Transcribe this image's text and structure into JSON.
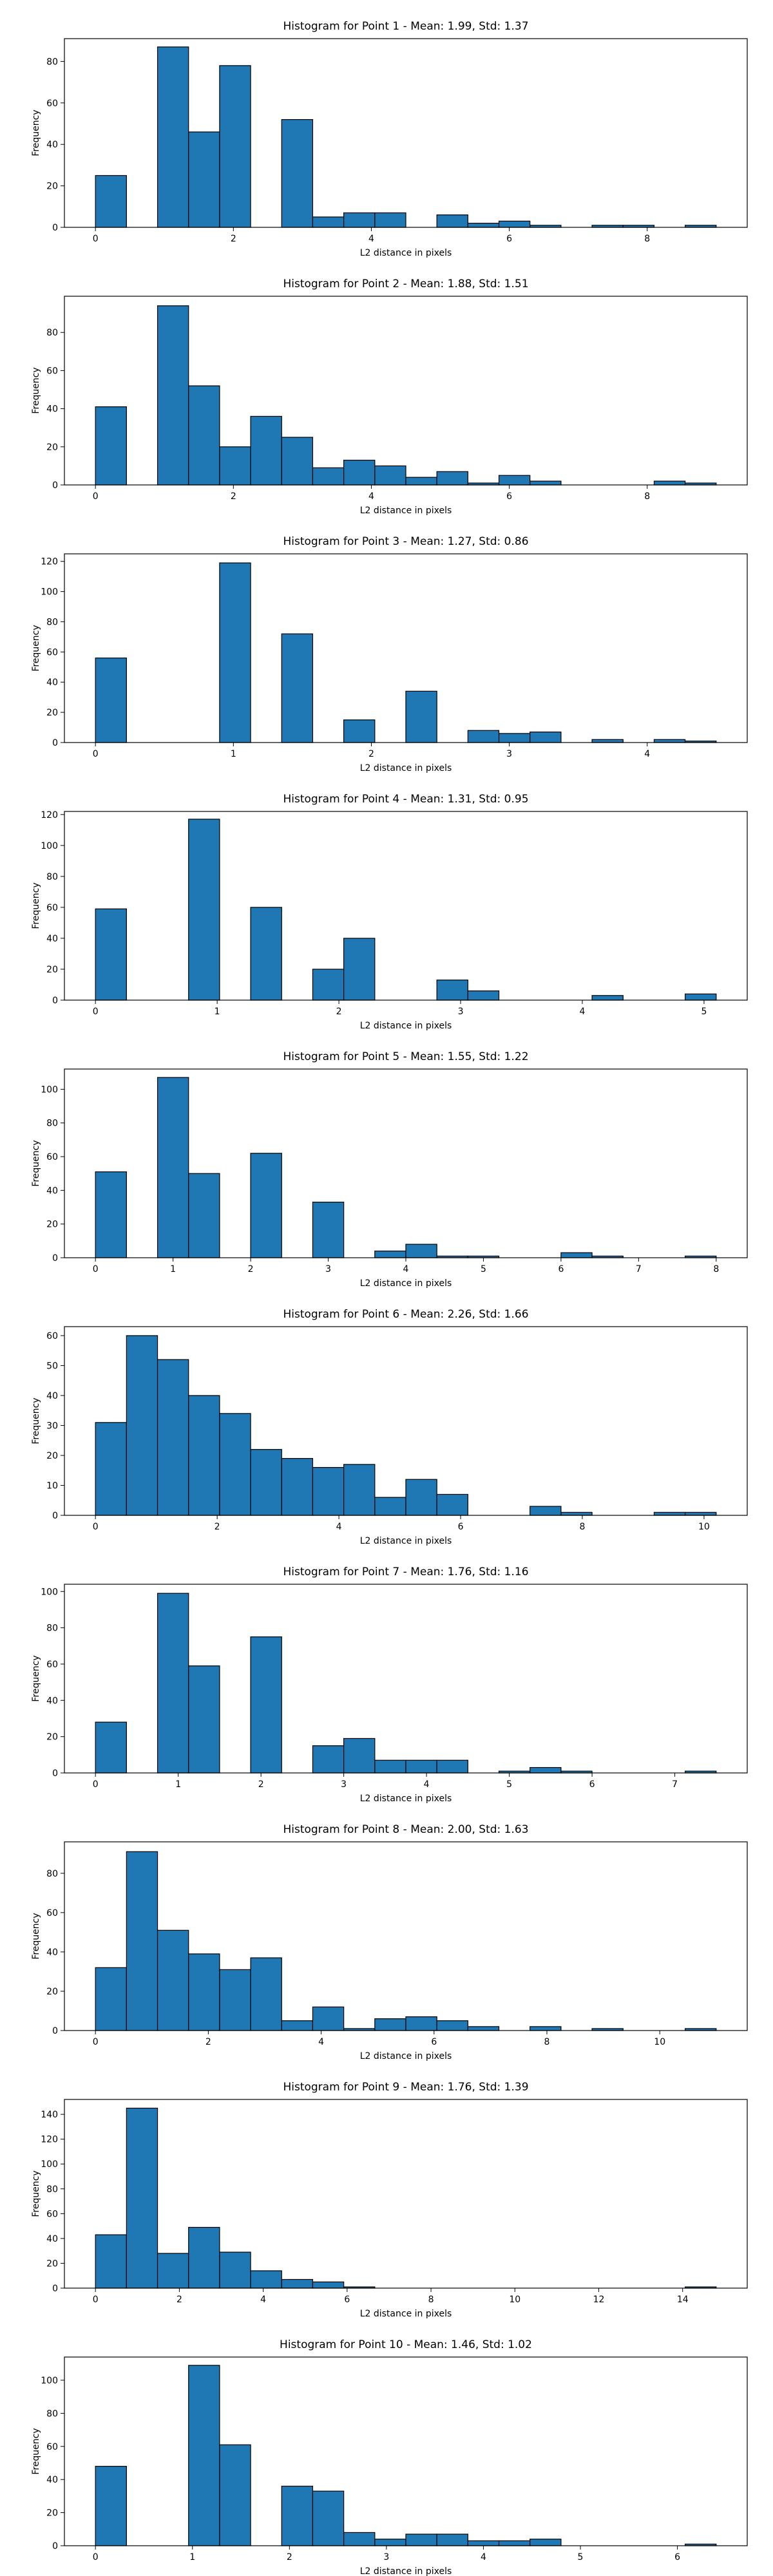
{
  "figure": {
    "colors": {
      "bar_fill": "#1f77b4",
      "bar_edge": "#000000",
      "axes": "#000000",
      "background": "#ffffff"
    }
  },
  "chart_data": [
    {
      "type": "bar",
      "title": "Histogram for Point 1 - Mean: 1.99, Std: 1.37",
      "xlabel": "L2 distance in pixels",
      "ylabel": "Frequency",
      "xlim": [
        -0.45,
        9.45
      ],
      "ylim": [
        0,
        91
      ],
      "xticks": [
        0,
        2,
        4,
        6,
        8
      ],
      "yticks": [
        0,
        20,
        40,
        60,
        80
      ],
      "bin_edges": [
        0,
        0.45,
        0.9,
        1.35,
        1.8,
        2.25,
        2.7,
        3.15,
        3.6,
        4.05,
        4.5,
        4.95,
        5.4,
        5.85,
        6.3,
        6.75,
        7.2,
        7.65,
        8.1,
        8.55,
        9.0
      ],
      "values": [
        25,
        0,
        87,
        46,
        78,
        0,
        52,
        5,
        7,
        7,
        0,
        6,
        2,
        3,
        1,
        0,
        1,
        1,
        0,
        1
      ],
      "grid": false,
      "legend": "none"
    },
    {
      "type": "bar",
      "title": "Histogram for Point 2 - Mean: 1.88, Std: 1.51",
      "xlabel": "L2 distance in pixels",
      "ylabel": "Frequency",
      "xlim": [
        -0.45,
        9.45
      ],
      "ylim": [
        0,
        99
      ],
      "xticks": [
        0,
        2,
        4,
        6,
        8
      ],
      "yticks": [
        0,
        20,
        40,
        60,
        80
      ],
      "bin_edges": [
        0,
        0.45,
        0.9,
        1.35,
        1.8,
        2.25,
        2.7,
        3.15,
        3.6,
        4.05,
        4.5,
        4.95,
        5.4,
        5.85,
        6.3,
        6.75,
        7.2,
        7.65,
        8.1,
        8.55,
        9.0
      ],
      "values": [
        41,
        0,
        94,
        52,
        20,
        36,
        25,
        9,
        13,
        10,
        4,
        7,
        1,
        5,
        2,
        0,
        0,
        0,
        2,
        1
      ],
      "grid": false,
      "legend": "none"
    },
    {
      "type": "bar",
      "title": "Histogram for Point 3 - Mean: 1.27, Std: 0.86",
      "xlabel": "L2 distance in pixels",
      "ylabel": "Frequency",
      "xlim": [
        -0.225,
        4.725
      ],
      "ylim": [
        0,
        125
      ],
      "xticks": [
        0,
        1,
        2,
        3,
        4
      ],
      "yticks": [
        0,
        20,
        40,
        60,
        80,
        100,
        120
      ],
      "bin_edges": [
        0,
        0.225,
        0.45,
        0.675,
        0.9,
        1.125,
        1.35,
        1.575,
        1.8,
        2.025,
        2.25,
        2.475,
        2.7,
        2.925,
        3.15,
        3.375,
        3.6,
        3.825,
        4.05,
        4.275,
        4.5
      ],
      "values": [
        56,
        0,
        0,
        0,
        119,
        0,
        72,
        0,
        15,
        0,
        34,
        0,
        8,
        6,
        7,
        0,
        2,
        0,
        2,
        1
      ],
      "grid": false,
      "legend": "none"
    },
    {
      "type": "bar",
      "title": "Histogram for Point 4 - Mean: 1.31, Std: 0.95",
      "xlabel": "L2 distance in pixels",
      "ylabel": "Frequency",
      "xlim": [
        -0.255,
        5.355
      ],
      "ylim": [
        0,
        122
      ],
      "xticks": [
        0,
        1,
        2,
        3,
        4,
        5
      ],
      "yticks": [
        0,
        20,
        40,
        60,
        80,
        100,
        120
      ],
      "bin_edges": [
        0,
        0.255,
        0.51,
        0.765,
        1.02,
        1.275,
        1.53,
        1.785,
        2.04,
        2.295,
        2.55,
        2.805,
        3.06,
        3.315,
        3.57,
        3.825,
        4.08,
        4.335,
        4.59,
        4.845,
        5.1
      ],
      "values": [
        59,
        0,
        0,
        117,
        0,
        60,
        0,
        20,
        40,
        0,
        0,
        13,
        6,
        0,
        0,
        0,
        3,
        0,
        0,
        4
      ],
      "grid": false,
      "legend": "none"
    },
    {
      "type": "bar",
      "title": "Histogram for Point 5 - Mean: 1.55, Std: 1.22",
      "xlabel": "L2 distance in pixels",
      "ylabel": "Frequency",
      "xlim": [
        -0.4,
        8.4
      ],
      "ylim": [
        0,
        112
      ],
      "xticks": [
        0,
        1,
        2,
        3,
        4,
        5,
        6,
        7,
        8
      ],
      "yticks": [
        0,
        20,
        40,
        60,
        80,
        100
      ],
      "bin_edges": [
        0,
        0.4,
        0.8,
        1.2,
        1.6,
        2.0,
        2.4,
        2.8,
        3.2,
        3.6,
        4.0,
        4.4,
        4.8,
        5.2,
        5.6,
        6.0,
        6.4,
        6.8,
        7.2,
        7.6,
        8.0
      ],
      "values": [
        51,
        0,
        107,
        50,
        0,
        62,
        0,
        33,
        0,
        4,
        8,
        1,
        1,
        0,
        0,
        3,
        1,
        0,
        0,
        1
      ],
      "grid": false,
      "legend": "none"
    },
    {
      "type": "bar",
      "title": "Histogram for Point 6 - Mean: 2.26, Std: 1.66",
      "xlabel": "L2 distance in pixels",
      "ylabel": "Frequency",
      "xlim": [
        -0.51,
        10.71
      ],
      "ylim": [
        0,
        63
      ],
      "xticks": [
        0,
        2,
        4,
        6,
        8,
        10
      ],
      "yticks": [
        0,
        10,
        20,
        30,
        40,
        50,
        60
      ],
      "bin_edges": [
        0,
        0.51,
        1.02,
        1.53,
        2.04,
        2.55,
        3.06,
        3.57,
        4.08,
        4.59,
        5.1,
        5.61,
        6.12,
        6.63,
        7.14,
        7.65,
        8.16,
        8.67,
        9.18,
        9.69,
        10.2
      ],
      "values": [
        31,
        60,
        52,
        40,
        34,
        22,
        19,
        16,
        17,
        6,
        12,
        7,
        0,
        0,
        3,
        1,
        0,
        0,
        1,
        1
      ],
      "grid": false,
      "legend": "none"
    },
    {
      "type": "bar",
      "title": "Histogram for Point 7 - Mean: 1.76, Std: 1.16",
      "xlabel": "L2 distance in pixels",
      "ylabel": "Frequency",
      "xlim": [
        -0.375,
        7.875
      ],
      "ylim": [
        0,
        104
      ],
      "xticks": [
        0,
        1,
        2,
        3,
        4,
        5,
        6,
        7
      ],
      "yticks": [
        0,
        20,
        40,
        60,
        80,
        100
      ],
      "bin_edges": [
        0,
        0.375,
        0.75,
        1.125,
        1.5,
        1.875,
        2.25,
        2.625,
        3.0,
        3.375,
        3.75,
        4.125,
        4.5,
        4.875,
        5.25,
        5.625,
        6.0,
        6.375,
        6.75,
        7.125,
        7.5
      ],
      "values": [
        28,
        0,
        99,
        59,
        0,
        75,
        0,
        15,
        19,
        7,
        7,
        7,
        0,
        1,
        3,
        1,
        0,
        0,
        0,
        1
      ],
      "grid": false,
      "legend": "none"
    },
    {
      "type": "bar",
      "title": "Histogram for Point 8 - Mean: 2.00, Std: 1.63",
      "xlabel": "L2 distance in pixels",
      "ylabel": "Frequency",
      "xlim": [
        -0.55,
        11.55
      ],
      "ylim": [
        0,
        96
      ],
      "xticks": [
        0,
        2,
        4,
        6,
        8,
        10
      ],
      "yticks": [
        0,
        20,
        40,
        60,
        80
      ],
      "bin_edges": [
        0,
        0.55,
        1.1,
        1.65,
        2.2,
        2.75,
        3.3,
        3.85,
        4.4,
        4.95,
        5.5,
        6.05,
        6.6,
        7.15,
        7.7,
        8.25,
        8.8,
        9.35,
        9.9,
        10.45,
        11.0
      ],
      "values": [
        32,
        91,
        51,
        39,
        31,
        37,
        5,
        12,
        1,
        6,
        7,
        5,
        2,
        0,
        2,
        0,
        1,
        0,
        0,
        1
      ],
      "grid": false,
      "legend": "none"
    },
    {
      "type": "bar",
      "title": "Histogram for Point 9 - Mean: 1.76, Std: 1.39",
      "xlabel": "L2 distance in pixels",
      "ylabel": "Frequency",
      "xlim": [
        -0.74,
        15.54
      ],
      "ylim": [
        0,
        152
      ],
      "xticks": [
        0,
        2,
        4,
        6,
        8,
        10,
        12,
        14
      ],
      "yticks": [
        0,
        20,
        40,
        60,
        80,
        100,
        120,
        140
      ],
      "bin_edges": [
        0,
        0.74,
        1.48,
        2.22,
        2.96,
        3.7,
        4.44,
        5.18,
        5.92,
        6.66,
        7.4,
        8.14,
        8.88,
        9.62,
        10.36,
        11.1,
        11.84,
        12.58,
        13.32,
        14.06,
        14.8
      ],
      "values": [
        43,
        145,
        28,
        49,
        29,
        14,
        7,
        5,
        1,
        0,
        0,
        0,
        0,
        0,
        0,
        0,
        0,
        0,
        0,
        1
      ],
      "grid": false,
      "legend": "none"
    },
    {
      "type": "bar",
      "title": "Histogram for Point 10 - Mean: 1.46, Std: 1.02",
      "xlabel": "L2 distance in pixels",
      "ylabel": "Frequency",
      "xlim": [
        -0.32,
        6.72
      ],
      "ylim": [
        0,
        114
      ],
      "xticks": [
        0,
        1,
        2,
        3,
        4,
        5,
        6
      ],
      "yticks": [
        0,
        20,
        40,
        60,
        80,
        100
      ],
      "bin_edges": [
        0,
        0.32,
        0.64,
        0.96,
        1.28,
        1.6,
        1.92,
        2.24,
        2.56,
        2.88,
        3.2,
        3.52,
        3.84,
        4.16,
        4.48,
        4.8,
        5.12,
        5.44,
        5.76,
        6.08,
        6.4
      ],
      "values": [
        48,
        0,
        0,
        109,
        61,
        0,
        36,
        33,
        8,
        4,
        7,
        7,
        3,
        3,
        4,
        0,
        0,
        0,
        0,
        1
      ],
      "grid": false,
      "legend": "none"
    }
  ]
}
